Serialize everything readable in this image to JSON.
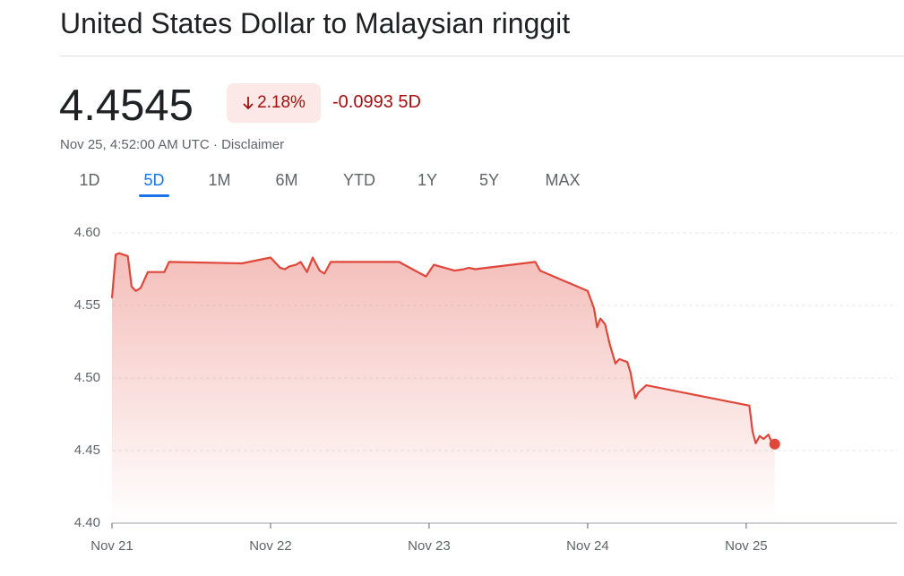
{
  "header": {
    "title": "United States Dollar to Malaysian ringgit"
  },
  "quote": {
    "price": "4.4545",
    "change_percent": "2.18%",
    "change": "-0.0993 5D",
    "timestamp": "Nov 25, 4:52:00 AM UTC",
    "disclaimer": "Disclaimer"
  },
  "tabs": [
    "1D",
    "5D",
    "1M",
    "6M",
    "YTD",
    "1Y",
    "5Y",
    "MAX"
  ],
  "chart_data": {
    "type": "line",
    "color": "#e0473b",
    "grid": true,
    "xlim": [
      0,
      4.95
    ],
    "xticks": [
      {
        "value": 0,
        "label": "Nov 21"
      },
      {
        "value": 1,
        "label": "Nov 22"
      },
      {
        "value": 2,
        "label": "Nov 23"
      },
      {
        "value": 3,
        "label": "Nov 24"
      },
      {
        "value": 4,
        "label": "Nov 25"
      }
    ],
    "ylim": [
      4.4,
      4.6
    ],
    "yticks": [
      {
        "value": 4.4,
        "label": "4.40"
      },
      4.45,
      {
        "value": 4.5,
        "label": "4.50"
      },
      4.55,
      {
        "value": 4.6,
        "label": "4.60"
      }
    ],
    "x": [
      0,
      0.023,
      0.045,
      0.1,
      0.124,
      0.15,
      0.18,
      0.226,
      0.33,
      0.36,
      0.82,
      1.0,
      1.06,
      1.09,
      1.12,
      1.16,
      1.19,
      1.23,
      1.266,
      1.31,
      1.34,
      1.38,
      1.81,
      1.98,
      2.03,
      2.16,
      2.22,
      2.25,
      2.29,
      2.67,
      2.7,
      3.0,
      3.04,
      3.06,
      3.08,
      3.11,
      3.14,
      3.175,
      3.2,
      3.25,
      3.27,
      3.3,
      3.32,
      3.37,
      4.02,
      4.04,
      4.06,
      4.085,
      4.11,
      4.14,
      4.16,
      4.18
    ],
    "values": [
      4.555,
      4.585,
      4.586,
      4.584,
      4.563,
      4.56,
      4.562,
      4.573,
      4.573,
      4.58,
      4.579,
      4.583,
      4.576,
      4.575,
      4.577,
      4.578,
      4.58,
      4.573,
      4.583,
      4.574,
      4.572,
      4.58,
      4.58,
      4.57,
      4.578,
      4.574,
      4.575,
      4.576,
      4.575,
      4.58,
      4.574,
      4.56,
      4.548,
      4.535,
      4.541,
      4.537,
      4.523,
      4.51,
      4.513,
      4.511,
      4.504,
      4.486,
      4.49,
      4.495,
      4.481,
      4.463,
      4.455,
      4.46,
      4.458,
      4.461,
      4.456,
      4.4545
    ]
  }
}
